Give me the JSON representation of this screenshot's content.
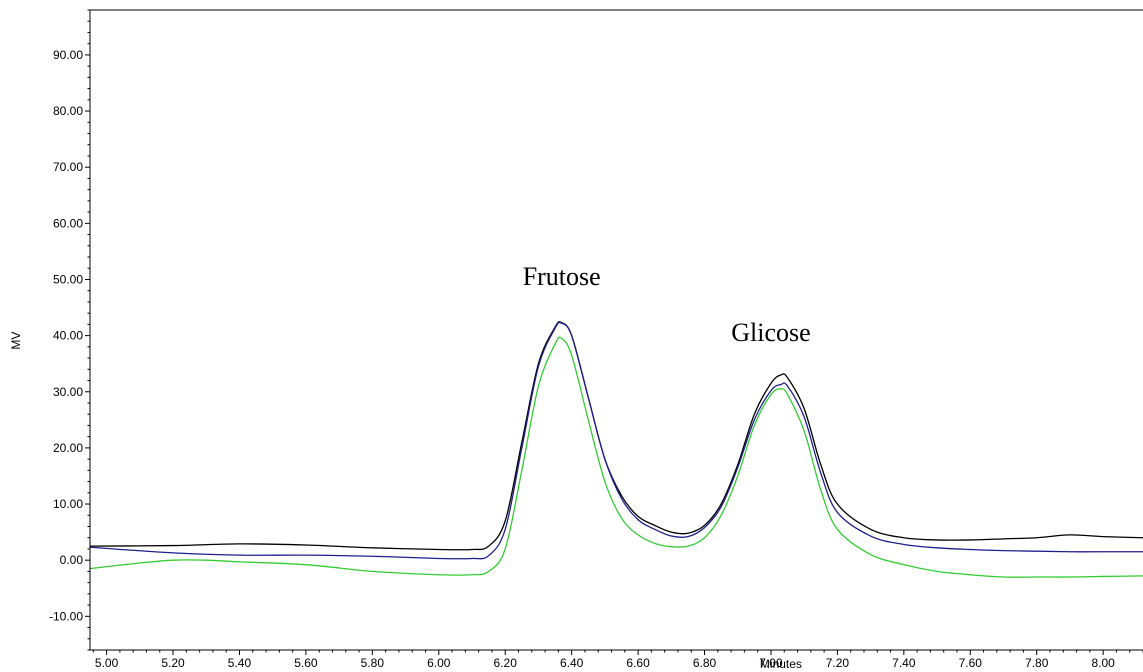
{
  "chart_data": {
    "type": "line",
    "title": "",
    "xlabel": "Minutes",
    "ylabel": "MV",
    "xlim": [
      4.95,
      8.12
    ],
    "ylim": [
      -16,
      98
    ],
    "x_ticks": [
      5.0,
      5.2,
      5.4,
      5.6,
      5.8,
      6.0,
      6.2,
      6.4,
      6.6,
      6.8,
      7.0,
      7.2,
      7.4,
      7.6,
      7.8,
      8.0
    ],
    "x_tick_labels": [
      "5.00",
      "5.20",
      "5.40",
      "5.60",
      "5.80",
      "6.00",
      "6.20",
      "6.40",
      "6.60",
      "6.80",
      "7.00",
      "7.20",
      "7.40",
      "7.60",
      "7.80",
      "8.00"
    ],
    "y_ticks": [
      -10,
      0,
      10,
      20,
      30,
      40,
      50,
      60,
      70,
      80,
      90
    ],
    "y_tick_labels": [
      "-10.00",
      "0.00",
      "10.00",
      "20.00",
      "30.00",
      "40.00",
      "50.00",
      "60.00",
      "70.00",
      "80.00",
      "90.00"
    ],
    "grid": false,
    "annotations": [
      {
        "text": "Frutose",
        "x": 6.37,
        "y": 49
      },
      {
        "text": "Glicose",
        "x": 7.0,
        "y": 39
      }
    ],
    "series": [
      {
        "color": "#000000",
        "x": [
          4.95,
          5.2,
          5.4,
          5.6,
          5.8,
          6.0,
          6.1,
          6.15,
          6.2,
          6.25,
          6.3,
          6.35,
          6.37,
          6.4,
          6.45,
          6.5,
          6.55,
          6.6,
          6.65,
          6.7,
          6.75,
          6.8,
          6.85,
          6.9,
          6.95,
          7.0,
          7.03,
          7.05,
          7.1,
          7.15,
          7.2,
          7.3,
          7.4,
          7.5,
          7.6,
          7.7,
          7.8,
          7.9,
          8.0,
          8.12
        ],
        "y": [
          2.5,
          2.6,
          2.9,
          2.7,
          2.2,
          1.9,
          1.9,
          2.5,
          7.0,
          21.0,
          35.0,
          41.5,
          42.3,
          40.0,
          29.0,
          18.0,
          11.5,
          7.8,
          6.2,
          5.0,
          4.8,
          6.2,
          10.0,
          17.0,
          26.0,
          31.5,
          33.0,
          32.5,
          27.0,
          17.0,
          10.0,
          5.5,
          4.0,
          3.6,
          3.6,
          3.8,
          4.0,
          4.5,
          4.2,
          4.0
        ]
      },
      {
        "color": "#1f1f8f",
        "x": [
          4.95,
          5.2,
          5.4,
          5.6,
          5.8,
          6.0,
          6.1,
          6.15,
          6.2,
          6.25,
          6.3,
          6.35,
          6.37,
          6.4,
          6.45,
          6.5,
          6.55,
          6.6,
          6.65,
          6.7,
          6.75,
          6.8,
          6.85,
          6.9,
          6.95,
          7.0,
          7.03,
          7.05,
          7.1,
          7.15,
          7.2,
          7.3,
          7.4,
          7.5,
          7.6,
          7.7,
          7.8,
          7.9,
          8.0,
          8.12
        ],
        "y": [
          2.3,
          1.3,
          0.9,
          0.9,
          0.7,
          0.3,
          0.3,
          0.8,
          5.5,
          20.0,
          34.5,
          41.3,
          42.2,
          40.0,
          29.0,
          18.0,
          11.0,
          7.2,
          5.5,
          4.3,
          4.2,
          5.8,
          9.5,
          16.5,
          25.0,
          30.2,
          31.3,
          31.0,
          25.5,
          15.5,
          8.5,
          4.3,
          2.8,
          2.2,
          1.9,
          1.7,
          1.6,
          1.5,
          1.5,
          1.5
        ]
      },
      {
        "color": "#33cc33",
        "x": [
          4.95,
          5.1,
          5.2,
          5.3,
          5.4,
          5.6,
          5.8,
          6.0,
          6.1,
          6.15,
          6.2,
          6.25,
          6.3,
          6.35,
          6.37,
          6.4,
          6.45,
          6.5,
          6.55,
          6.6,
          6.65,
          6.7,
          6.75,
          6.8,
          6.85,
          6.9,
          6.95,
          7.0,
          7.03,
          7.05,
          7.1,
          7.15,
          7.2,
          7.3,
          7.4,
          7.5,
          7.6,
          7.7,
          7.8,
          7.9,
          8.0,
          8.12
        ],
        "y": [
          -1.5,
          -0.5,
          0.0,
          0.0,
          -0.3,
          -0.8,
          -2.0,
          -2.6,
          -2.6,
          -2.0,
          2.0,
          16.0,
          31.0,
          38.5,
          39.5,
          36.5,
          25.0,
          14.0,
          7.5,
          4.5,
          3.0,
          2.4,
          2.5,
          4.0,
          8.0,
          15.0,
          24.0,
          29.5,
          30.5,
          29.5,
          23.0,
          12.5,
          5.5,
          1.0,
          -0.8,
          -2.0,
          -2.6,
          -3.0,
          -3.0,
          -3.0,
          -2.9,
          -2.8
        ]
      }
    ]
  }
}
